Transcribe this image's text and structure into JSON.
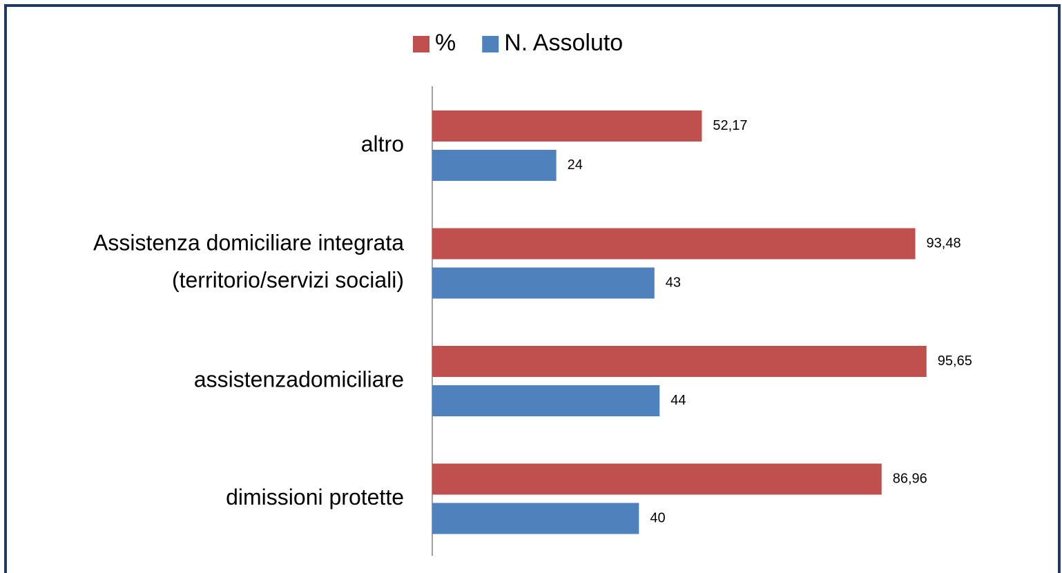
{
  "chart_data": {
    "type": "barh",
    "categories": [
      "altro",
      "Assistenza domiciliare integrata\n(territorio/servizi sociali)",
      "assistenzadomiciliare",
      "dimissioni protette"
    ],
    "series": [
      {
        "name": "%",
        "color": "#c0504d",
        "values": [
          52.17,
          93.48,
          95.65,
          86.96
        ],
        "value_labels": [
          "52,17",
          "93,48",
          "95,65",
          "86,96"
        ]
      },
      {
        "name": "N. Assoluto",
        "color": "#4f81bd",
        "values": [
          24,
          43,
          44,
          40
        ]
      }
    ],
    "xlim": [
      0,
      120
    ],
    "legend": "top"
  }
}
